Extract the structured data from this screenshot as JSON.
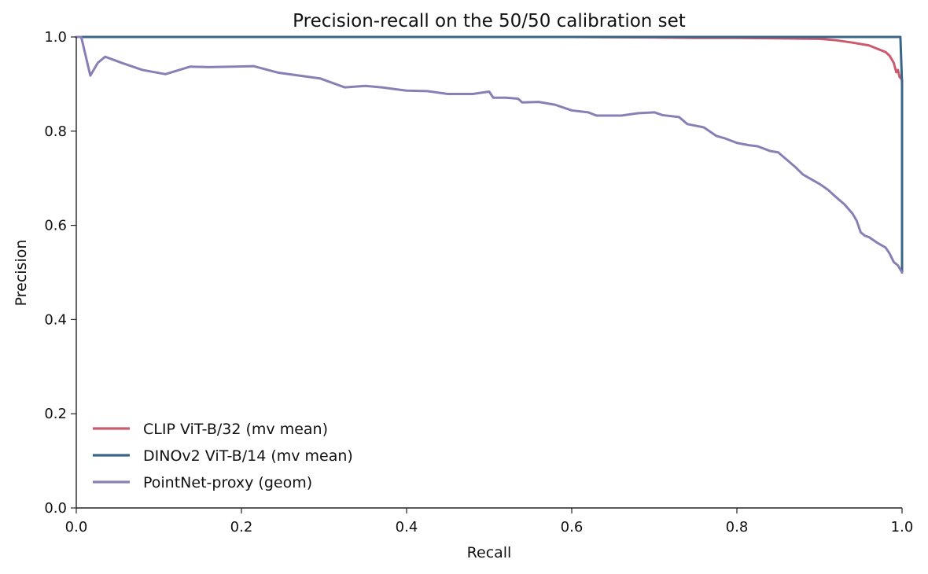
{
  "chart_data": {
    "type": "line",
    "title": "Precision-recall on the 50/50 calibration set",
    "xlabel": "Recall",
    "ylabel": "Precision",
    "xlim": [
      0,
      1
    ],
    "ylim": [
      0,
      1
    ],
    "x_ticks": [
      "0.0",
      "0.2",
      "0.4",
      "0.6",
      "0.8",
      "1.0"
    ],
    "y_ticks": [
      "0.0",
      "0.2",
      "0.4",
      "0.6",
      "0.8",
      "1.0"
    ],
    "grid": false,
    "legend_position": "lower-left",
    "series": [
      {
        "name": "CLIP ViT-B/32 (mv mean)",
        "color": "#cc5a6e",
        "x": [
          0.0,
          0.3,
          0.6,
          0.7,
          0.75,
          0.8,
          0.85,
          0.9,
          0.92,
          0.94,
          0.96,
          0.97,
          0.98,
          0.985,
          0.99,
          0.993,
          0.995,
          0.997,
          1.0,
          1.0
        ],
        "y": [
          1.0,
          1.0,
          1.0,
          0.999,
          0.998,
          0.998,
          0.997,
          0.996,
          0.993,
          0.988,
          0.982,
          0.975,
          0.968,
          0.96,
          0.945,
          0.925,
          0.93,
          0.915,
          0.91,
          0.5
        ]
      },
      {
        "name": "DINOv2 ViT-B/14 (mv mean)",
        "color": "#3b6587",
        "x": [
          0.0,
          0.5,
          0.998,
          0.999,
          1.0,
          1.0
        ],
        "y": [
          1.0,
          1.0,
          1.0,
          0.95,
          0.9,
          0.5
        ]
      },
      {
        "name": "PointNet-proxy (geom)",
        "color": "#8a7fb5",
        "x": [
          0.0,
          0.006,
          0.017,
          0.026,
          0.035,
          0.055,
          0.08,
          0.108,
          0.138,
          0.16,
          0.19,
          0.215,
          0.245,
          0.27,
          0.295,
          0.325,
          0.35,
          0.37,
          0.4,
          0.425,
          0.45,
          0.48,
          0.5,
          0.505,
          0.52,
          0.535,
          0.54,
          0.56,
          0.58,
          0.6,
          0.62,
          0.63,
          0.66,
          0.68,
          0.7,
          0.71,
          0.73,
          0.74,
          0.76,
          0.775,
          0.785,
          0.8,
          0.815,
          0.825,
          0.84,
          0.85,
          0.86,
          0.87,
          0.88,
          0.89,
          0.9,
          0.91,
          0.92,
          0.93,
          0.94,
          0.945,
          0.95,
          0.955,
          0.96,
          0.97,
          0.98,
          0.985,
          0.99,
          0.995,
          1.0
        ],
        "y": [
          1.0,
          1.0,
          0.918,
          0.945,
          0.958,
          0.945,
          0.93,
          0.921,
          0.937,
          0.936,
          0.937,
          0.938,
          0.924,
          0.918,
          0.912,
          0.893,
          0.896,
          0.893,
          0.886,
          0.885,
          0.879,
          0.879,
          0.884,
          0.871,
          0.871,
          0.869,
          0.861,
          0.862,
          0.856,
          0.844,
          0.84,
          0.833,
          0.833,
          0.838,
          0.84,
          0.834,
          0.83,
          0.815,
          0.808,
          0.79,
          0.785,
          0.775,
          0.77,
          0.768,
          0.758,
          0.755,
          0.74,
          0.725,
          0.708,
          0.698,
          0.688,
          0.676,
          0.66,
          0.645,
          0.625,
          0.61,
          0.585,
          0.578,
          0.575,
          0.563,
          0.553,
          0.54,
          0.522,
          0.515,
          0.5
        ]
      }
    ]
  }
}
